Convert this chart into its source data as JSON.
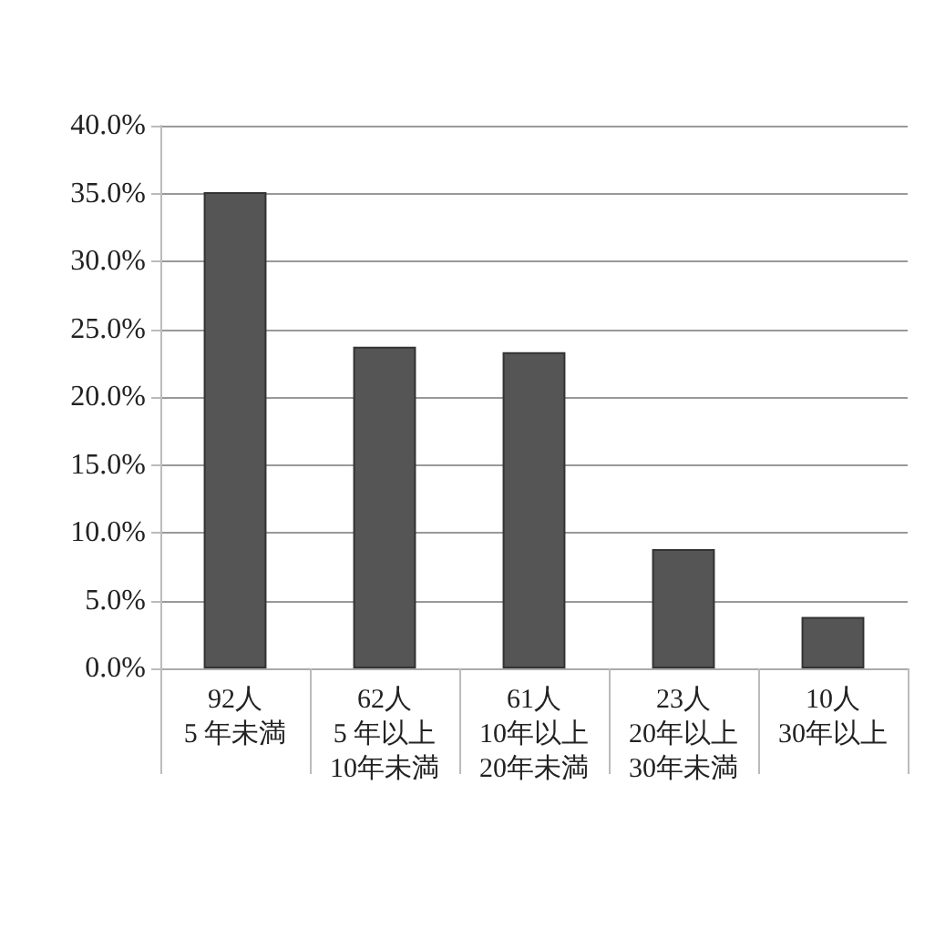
{
  "chart_data": {
    "type": "bar",
    "categories": [
      "92人\n5 年未満",
      "62人\n5 年以上\n10年未満",
      "61人\n10年以上\n20年未満",
      "23人\n20年以上\n30年未満",
      "10人\n30年以上"
    ],
    "values": [
      35.1,
      23.7,
      23.3,
      8.8,
      3.8
    ],
    "color": "#555555",
    "ylim": [
      0,
      40
    ],
    "yticks": [
      {
        "value": 0,
        "label": "0.0%"
      },
      {
        "value": 5,
        "label": "5.0%"
      },
      {
        "value": 10,
        "label": "10.0%"
      },
      {
        "value": 15,
        "label": "15.0%"
      },
      {
        "value": 20,
        "label": "20.0%"
      },
      {
        "value": 25,
        "label": "25.0%"
      },
      {
        "value": 30,
        "label": "30.0%"
      },
      {
        "value": 35,
        "label": "35.0%"
      },
      {
        "value": 40,
        "label": "40.0%"
      }
    ],
    "grid": "y"
  }
}
